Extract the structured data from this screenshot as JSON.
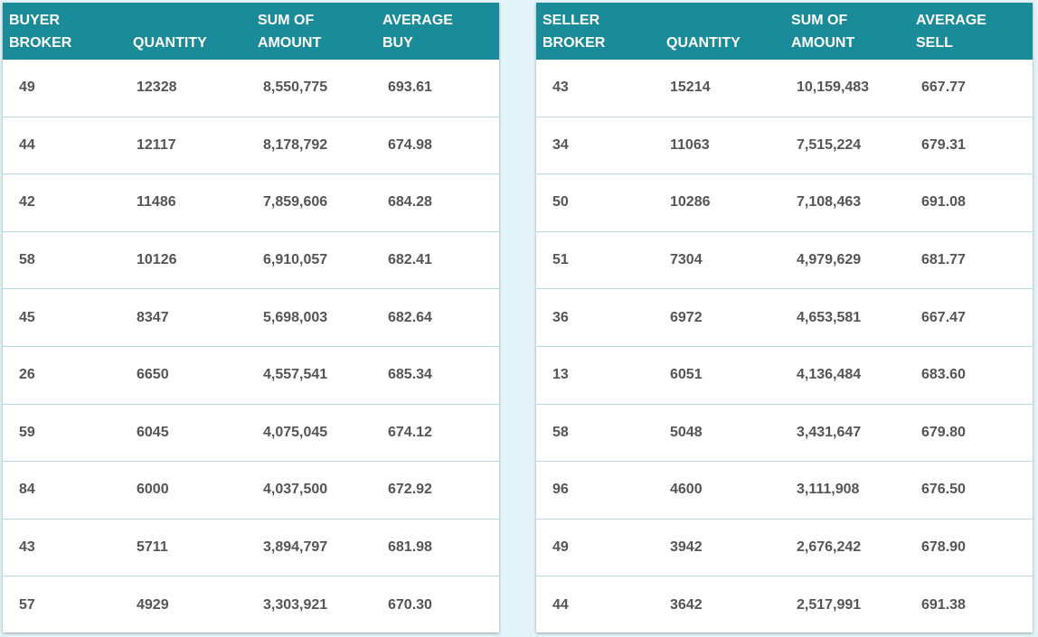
{
  "buyer_table": {
    "headers": [
      "BUYER\nBROKER",
      "QUANTITY",
      "SUM OF\nAMOUNT",
      "AVERAGE\nBUY"
    ],
    "rows": [
      [
        "49",
        "12328",
        "8,550,775",
        "693.61"
      ],
      [
        "44",
        "12117",
        "8,178,792",
        "674.98"
      ],
      [
        "42",
        "11486",
        "7,859,606",
        "684.28"
      ],
      [
        "58",
        "10126",
        "6,910,057",
        "682.41"
      ],
      [
        "45",
        "8347",
        "5,698,003",
        "682.64"
      ],
      [
        "26",
        "6650",
        "4,557,541",
        "685.34"
      ],
      [
        "59",
        "6045",
        "4,075,045",
        "674.12"
      ],
      [
        "84",
        "6000",
        "4,037,500",
        "672.92"
      ],
      [
        "43",
        "5711",
        "3,894,797",
        "681.98"
      ],
      [
        "57",
        "4929",
        "3,303,921",
        "670.30"
      ]
    ]
  },
  "seller_table": {
    "headers": [
      "SELLER\nBROKER",
      "QUANTITY",
      "SUM OF\nAMOUNT",
      "AVERAGE\nSELL"
    ],
    "rows": [
      [
        "43",
        "15214",
        "10,159,483",
        "667.77"
      ],
      [
        "34",
        "11063",
        "7,515,224",
        "679.31"
      ],
      [
        "50",
        "10286",
        "7,108,463",
        "691.08"
      ],
      [
        "51",
        "7304",
        "4,979,629",
        "681.77"
      ],
      [
        "36",
        "6972",
        "4,653,581",
        "667.47"
      ],
      [
        "13",
        "6051",
        "4,136,484",
        "683.60"
      ],
      [
        "58",
        "5048",
        "3,431,647",
        "679.80"
      ],
      [
        "96",
        "4600",
        "3,111,908",
        "676.50"
      ],
      [
        "49",
        "3942",
        "2,676,242",
        "678.90"
      ],
      [
        "44",
        "3642",
        "2,517,991",
        "691.38"
      ]
    ]
  },
  "colors": {
    "header_bg": "#1a8b98",
    "page_bg": "#e3f4f8",
    "cell_text": "#555555",
    "row_divider": "#b8dce0"
  }
}
